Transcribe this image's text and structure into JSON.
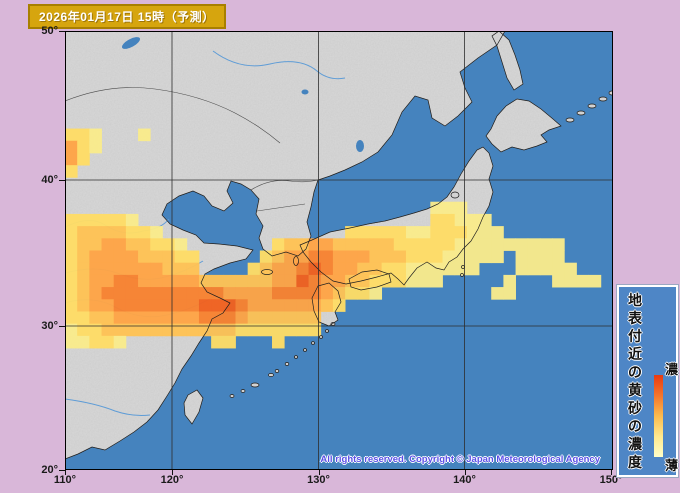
{
  "page": {
    "background": "#D9B7D9"
  },
  "title_box": {
    "text": "2026年01月17日 15時（予測）",
    "bg": "#D6A50E"
  },
  "map": {
    "sea_color": "#4583BE",
    "land_color": "#D8D8D8",
    "axes": {
      "lat": [
        "50°",
        "40°",
        "30°",
        "20°"
      ],
      "lon": [
        "110°",
        "120°",
        "130°",
        "140°",
        "150°"
      ]
    },
    "copyright": "All rights reserved. Copyright © Japan Meteorological Agency",
    "dust": {
      "palette": {
        "1": "#FAEC8C",
        "2": "#FFDD66",
        "3": "#FFC355",
        "4": "#FFA546",
        "5": "#F88230",
        "6": "#F1611F"
      },
      "rows": [
        "000000000000000000000000000000000000000000000",
        "000000000000000000000000000000000000000000000",
        "000000000000000000000000000000000000000000000",
        "000000000000000000000000000000000000000000000",
        "000000000000000000000000000000000000000000000",
        "000000000000000000000000000000000000000000000",
        "000000000000000000000000000000000000000000000",
        "000000000000000000000000000000000000000000000",
        "221000100000000000000000000000000000000000000",
        "421000000000000000000000000000000000000000000",
        "420000000000000000000000000000000000000000000",
        "200000000000000000000000000000000000000000000",
        "000000000000000000000000000000000000000000000",
        "000000000000000000000000000000000000000000000",
        "000000000000000000000000000000111000000000000",
        "222221000000000000000000000000221110000000000",
        "233332210000000000000002222211222111000000000",
        "233443322100000002334433333222221111111110000",
        "234444333220000023445544433322211111011110000",
        "234444443330000234456544332211111100011111000",
        "234455444443333334465443322211100000100011110",
        "234555555555544445555432210000000001100000000",
        "234455555556665444444320000000000000000000000",
        "223344444445554333333000000000000000000000000",
        "122333333333332222222000000000000000000000000",
        "112210000000220002000000000000000000000000000",
        "000000000000000000000000000000000000000000000",
        "000000000000000000000000000000000000000000000",
        "000000000000000000000000000000000000000000000",
        "000000000000000000000000000000000000000000000",
        "000000000000000000000000000000000000000000000",
        "000000000000000000000000000000000000000000000",
        "000000000000000000000000000000000000000000000",
        "000000000000000000000000000000000000000000000",
        "000000000000000000000000000000000000000000000",
        "000000000000000000000000000000000000000000000"
      ]
    }
  },
  "legend": {
    "title": "地表付近の黄砂の濃度",
    "high_label": "濃",
    "low_label": "薄",
    "gradient": [
      "#E93A10",
      "#F4752B",
      "#FBBB4E",
      "#FFE98E",
      "#FFFFC8"
    ]
  }
}
